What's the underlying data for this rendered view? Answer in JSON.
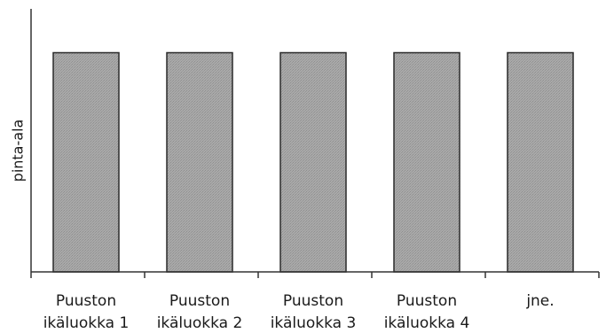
{
  "chart_data": {
    "type": "bar",
    "categories": [
      [
        "Puuston",
        "ikäluokka 1"
      ],
      [
        "Puuston",
        "ikäluokka 2"
      ],
      [
        "Puuston",
        "ikäluokka 3"
      ],
      [
        "Puuston",
        "ikäluokka 4"
      ],
      [
        "jne."
      ]
    ],
    "values": [
      1,
      1,
      1,
      1,
      1
    ],
    "ylabel": "pinta-ala",
    "xlabel": "",
    "title": "",
    "ylim": [
      0,
      1.2
    ],
    "grid": false,
    "bar_color": "#a6a6a6",
    "bar_edge_color": "#2a2a2a",
    "axis_color": "#333333"
  }
}
